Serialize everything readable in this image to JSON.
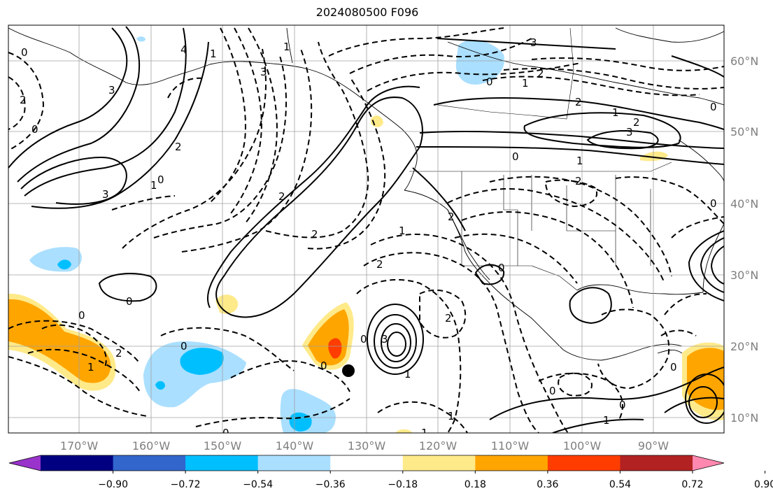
{
  "title": "2024080500 F096",
  "lon_ticks": [
    "170°W",
    "160°W",
    "150°W",
    "140°W",
    "130°W",
    "120°W",
    "110°W",
    "100°W",
    "90°W"
  ],
  "lat_ticks": [
    "60°N",
    "50°N",
    "40°N",
    "30°N",
    "20°N",
    "10°N"
  ],
  "colorbar": {
    "tick_labels": [
      "−0.90",
      "−0.72",
      "−0.54",
      "−0.36",
      "−0.18",
      "0.18",
      "0.36",
      "0.54",
      "0.72",
      "0.90"
    ],
    "colors": [
      "#9933cc",
      "#000080",
      "#3366cc",
      "#00bfff",
      "#aadfff",
      "#ffffff",
      "#ffea8a",
      "#ffa500",
      "#ff3d00",
      "#b22222",
      "#ff88b0"
    ]
  },
  "contour_labels": [
    "0",
    "4",
    "3",
    "2",
    "1",
    "0",
    "3",
    "2",
    "1",
    "0",
    "1",
    "2",
    "3",
    "3",
    "2",
    "1",
    "0",
    "2",
    "1",
    "0",
    "2",
    "0",
    "1",
    "2",
    "0",
    "3",
    "1",
    "0",
    "2",
    "0",
    "0",
    "1",
    "2",
    "0",
    "0",
    "1",
    "2",
    "0",
    "2",
    "0",
    "3",
    "2",
    "1",
    "0",
    "1",
    "0",
    "0",
    "1"
  ],
  "marker": {
    "name": "point",
    "color": "#000000"
  }
}
